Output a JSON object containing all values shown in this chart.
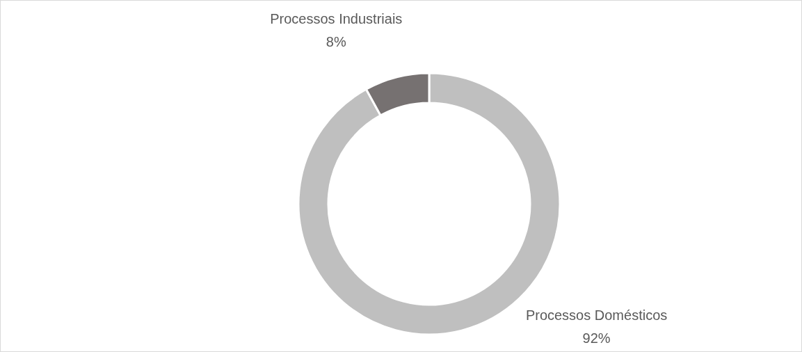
{
  "chart_data": {
    "type": "donut",
    "categories": [
      "Processos Domésticos",
      "Processos Industriais"
    ],
    "values": [
      92,
      8
    ],
    "value_labels": [
      "92%",
      "8%"
    ],
    "colors": [
      "#bfbfbf",
      "#767171"
    ]
  }
}
